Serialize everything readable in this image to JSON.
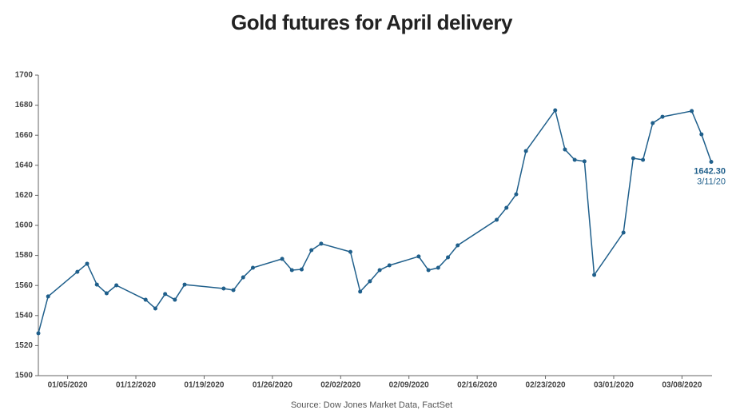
{
  "chart_data": {
    "type": "line",
    "title": "Gold futures for April delivery",
    "source": "Source: Dow Jones Market Data, FactSet",
    "color": "#1f5f8b",
    "x": [
      "2020-01-02",
      "2020-01-03",
      "2020-01-06",
      "2020-01-07",
      "2020-01-08",
      "2020-01-09",
      "2020-01-10",
      "2020-01-13",
      "2020-01-14",
      "2020-01-15",
      "2020-01-16",
      "2020-01-17",
      "2020-01-21",
      "2020-01-22",
      "2020-01-23",
      "2020-01-24",
      "2020-01-27",
      "2020-01-28",
      "2020-01-29",
      "2020-01-30",
      "2020-01-31",
      "2020-02-03",
      "2020-02-04",
      "2020-02-05",
      "2020-02-06",
      "2020-02-07",
      "2020-02-10",
      "2020-02-11",
      "2020-02-12",
      "2020-02-13",
      "2020-02-14",
      "2020-02-18",
      "2020-02-19",
      "2020-02-20",
      "2020-02-21",
      "2020-02-24",
      "2020-02-25",
      "2020-02-26",
      "2020-02-27",
      "2020-02-28",
      "2020-03-02",
      "2020-03-03",
      "2020-03-04",
      "2020-03-05",
      "2020-03-06",
      "2020-03-09",
      "2020-03-10",
      "2020-03-11"
    ],
    "values": [
      1528.2,
      1552.7,
      1569.1,
      1574.5,
      1560.6,
      1554.8,
      1560.1,
      1550.5,
      1544.7,
      1554.3,
      1550.5,
      1560.6,
      1558.0,
      1556.9,
      1565.4,
      1571.8,
      1577.7,
      1570.2,
      1570.7,
      1583.5,
      1587.8,
      1582.4,
      1555.9,
      1562.8,
      1570.2,
      1573.4,
      1579.3,
      1570.2,
      1571.8,
      1578.7,
      1586.7,
      1603.7,
      1611.7,
      1620.7,
      1649.5,
      1676.6,
      1650.5,
      1643.6,
      1642.6,
      1567.0,
      1595.2,
      1644.7,
      1643.6,
      1668.1,
      1672.3,
      1676.1,
      1660.6,
      1642.3
    ],
    "value_labels": [
      null,
      null,
      null,
      null,
      null,
      null,
      null,
      null,
      null,
      null,
      null,
      null,
      null,
      null,
      null,
      null,
      null,
      null,
      null,
      null,
      null,
      null,
      null,
      null,
      null,
      null,
      null,
      null,
      null,
      null,
      null,
      null,
      null,
      null,
      null,
      null,
      null,
      null,
      null,
      null,
      null,
      null,
      null,
      null,
      null,
      null,
      null,
      "1642.30"
    ],
    "annotation": "3/11/20",
    "xlim": [
      "2020-01-02",
      "2020-03-11"
    ],
    "xticks": [
      {
        "value": "2020-01-05",
        "label": "01/05/2020"
      },
      {
        "value": "2020-01-12",
        "label": "01/12/2020"
      },
      {
        "value": "2020-01-19",
        "label": "01/19/2020"
      },
      {
        "value": "2020-01-26",
        "label": "01/26/2020"
      },
      {
        "value": "2020-02-02",
        "label": "02/02/2020"
      },
      {
        "value": "2020-02-09",
        "label": "02/09/2020"
      },
      {
        "value": "2020-02-16",
        "label": "02/16/2020"
      },
      {
        "value": "2020-02-23",
        "label": "02/23/2020"
      },
      {
        "value": "2020-03-01",
        "label": "03/01/2020"
      },
      {
        "value": "2020-03-08",
        "label": "03/08/2020"
      }
    ],
    "ylim": [
      1500,
      1700
    ],
    "yticks": [
      1500,
      1520,
      1540,
      1560,
      1580,
      1600,
      1620,
      1640,
      1660,
      1680,
      1700
    ],
    "grid": false
  }
}
